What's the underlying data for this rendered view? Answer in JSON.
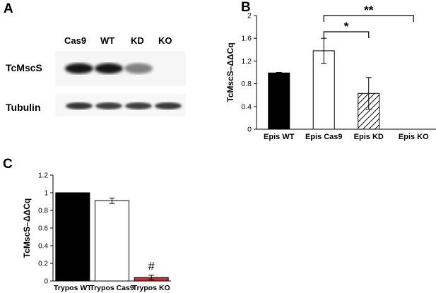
{
  "panels": {
    "a": "A",
    "b": "B",
    "c": "C"
  },
  "blot": {
    "lanes": [
      "Cas9",
      "WT",
      "KD",
      "KO"
    ],
    "proteins": [
      "TcMscS",
      "Tubulin"
    ],
    "tcmscs_relative_intensity": [
      1.0,
      1.0,
      0.55,
      0.0
    ],
    "tubulin_relative_intensity": [
      0.9,
      0.85,
      0.85,
      0.88
    ]
  },
  "chart_data": [
    {
      "panel": "B",
      "type": "bar",
      "categories": [
        "Epis WT",
        "Epis Cas9",
        "Epis KD",
        "Epis KO"
      ],
      "values": [
        0.99,
        1.38,
        0.63,
        0.0
      ],
      "errors": [
        0.01,
        0.22,
        0.28,
        0.0
      ],
      "fills": [
        "solid",
        "empty",
        "hatched",
        "empty"
      ],
      "xlabel": "",
      "ylabel": "TcMscS–ΔΔCq",
      "ylim": [
        0,
        2
      ],
      "yticks": [
        "0",
        "0.4",
        "0.8",
        "1.2",
        "1.6",
        "2"
      ],
      "grid": false,
      "significance": [
        {
          "from": 1,
          "to": 2,
          "label": "*"
        },
        {
          "from": 1,
          "to": 3,
          "label": "**"
        }
      ]
    },
    {
      "panel": "C",
      "type": "bar",
      "categories": [
        "Trypos WT",
        "Trypos Cas9",
        "Trypos KO"
      ],
      "values": [
        1.0,
        0.91,
        0.04
      ],
      "errors": [
        0.0,
        0.03,
        0.025
      ],
      "fills": [
        "#000000",
        "#ffffff",
        "#d12a2a"
      ],
      "xlabel": "",
      "ylabel": "TcMscS–ΔΔCq",
      "ylim": [
        0,
        1.2
      ],
      "yticks": [
        "0",
        "0.2",
        "0.4",
        "0.6",
        "0.8",
        "1",
        "1.2"
      ],
      "grid": false,
      "annotations": [
        {
          "index": 2,
          "label": "#"
        }
      ]
    }
  ]
}
